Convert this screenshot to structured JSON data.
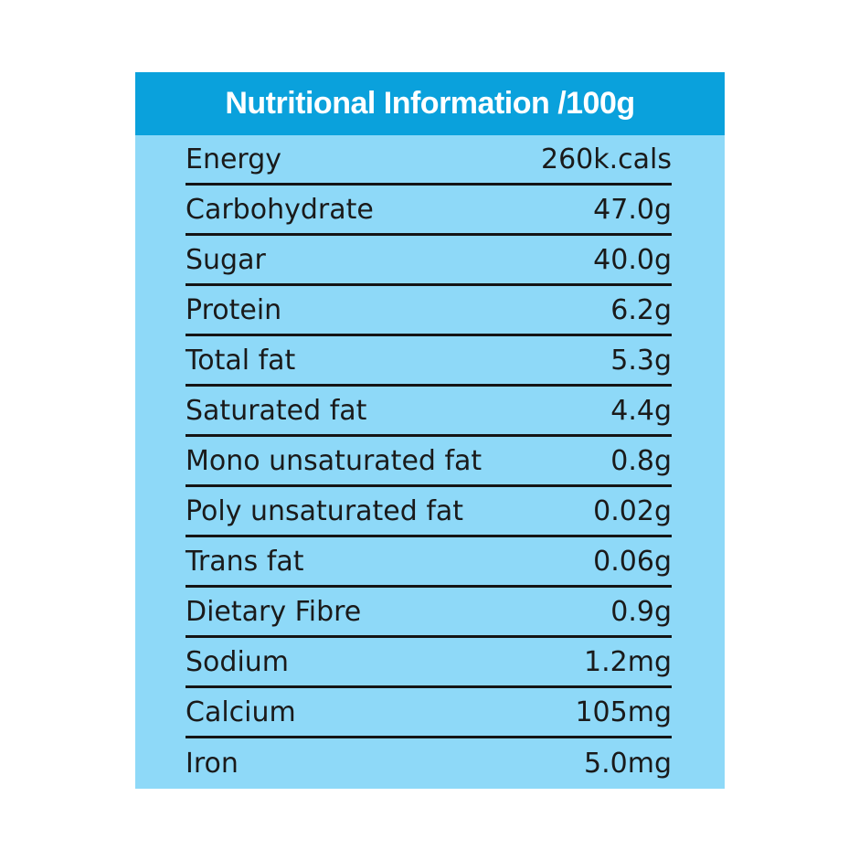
{
  "header": {
    "title": "Nutritional Information /100g"
  },
  "colors": {
    "page_bg": "#ffffff",
    "header_bg": "#0aa1dc",
    "header_text": "#ffffff",
    "panel_bg": "#8ed9f8",
    "text": "#1a1a1a",
    "divider": "#141414"
  },
  "table": {
    "rows": [
      {
        "label": "Energy",
        "value": "260k.cals"
      },
      {
        "label": "Carbohydrate",
        "value": "47.0g"
      },
      {
        "label": "Sugar",
        "value": "40.0g"
      },
      {
        "label": "Protein",
        "value": "6.2g"
      },
      {
        "label": "Total fat",
        "value": "5.3g"
      },
      {
        "label": "Saturated fat",
        "value": "4.4g"
      },
      {
        "label": "Mono unsaturated fat",
        "value": "0.8g"
      },
      {
        "label": "Poly unsaturated fat",
        "value": "0.02g"
      },
      {
        "label": "Trans fat",
        "value": "0.06g"
      },
      {
        "label": "Dietary Fibre",
        "value": "0.9g"
      },
      {
        "label": "Sodium",
        "value": "1.2mg"
      },
      {
        "label": "Calcium",
        "value": "105mg"
      },
      {
        "label": "Iron",
        "value": "5.0mg"
      }
    ]
  }
}
